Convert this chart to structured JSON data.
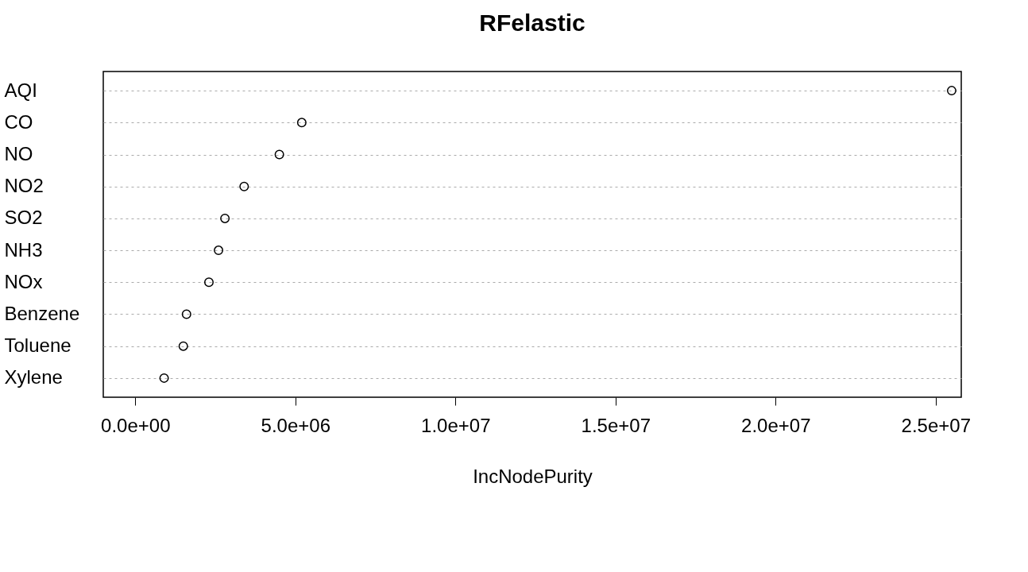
{
  "chart_data": {
    "type": "scatter",
    "title": "RFelastic",
    "xlabel": "IncNodePurity",
    "orientation": "horizontal",
    "categories": [
      "AQI",
      "CO",
      "NO",
      "NO2",
      "SO2",
      "NH3",
      "NOx",
      "Benzene",
      "Toluene",
      "Xylene"
    ],
    "series": [
      {
        "color": "#000000",
        "values": [
          25500000,
          5200000,
          4500000,
          3400000,
          2800000,
          2600000,
          2300000,
          1600000,
          1500000,
          900000
        ]
      }
    ],
    "xlim": [
      -1000000,
      25800000
    ],
    "xticks": [
      {
        "value": 0,
        "label": "0.0e+00"
      },
      {
        "value": 5000000,
        "label": "5.0e+06"
      },
      {
        "value": 10000000,
        "label": "1.0e+07"
      },
      {
        "value": 15000000,
        "label": "1.5e+07"
      },
      {
        "value": 20000000,
        "label": "2.0e+07"
      },
      {
        "value": 25000000,
        "label": "2.5e+07"
      }
    ],
    "grid": "y",
    "marker": "circle"
  }
}
